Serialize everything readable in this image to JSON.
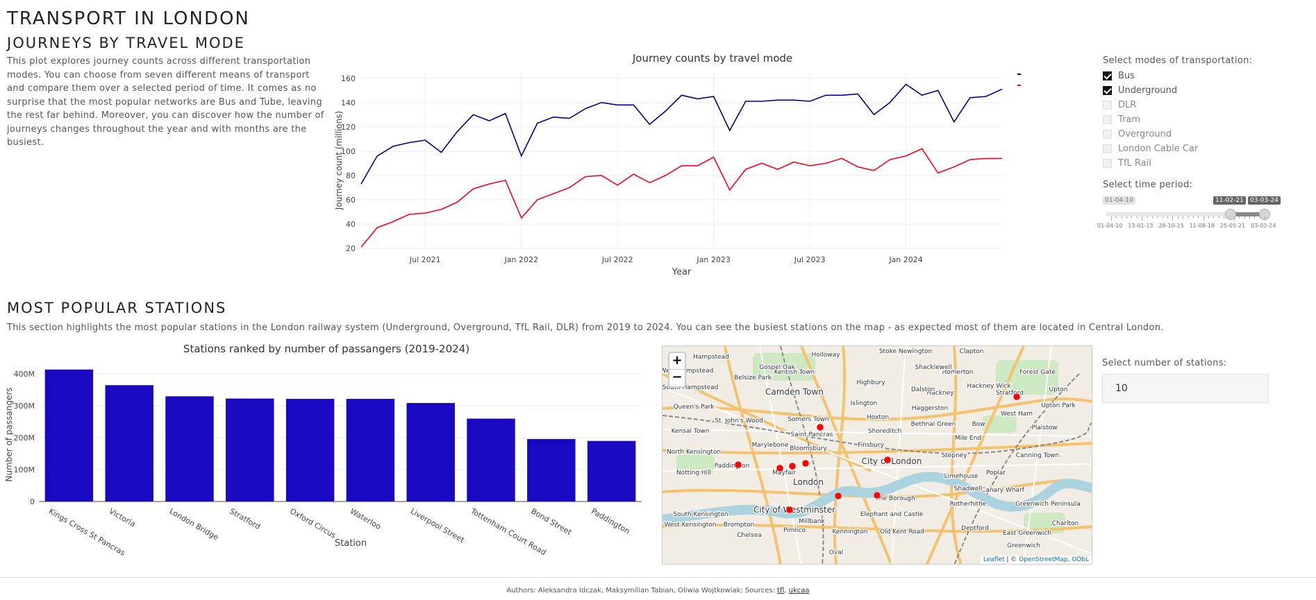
{
  "page": {
    "title": "TRANSPORT IN LONDON"
  },
  "journeys": {
    "heading": "JOURNEYS BY TRAVEL MODE",
    "description": "This plot explores journey counts across different transportation modes. You can choose from seven different means of transport and compare them over a selected period of time. It comes as no surprise that the most popular networks are Bus and Tube, leaving the rest far behind. Moreover, you can discover how the number of journeys changes throughout the year and with months are the busiest.",
    "modes_label": "Select modes of transportation:",
    "modes": [
      {
        "label": "Bus",
        "checked": true
      },
      {
        "label": "Underground",
        "checked": true
      },
      {
        "label": "DLR",
        "checked": false
      },
      {
        "label": "Tram",
        "checked": false
      },
      {
        "label": "Overground",
        "checked": false
      },
      {
        "label": "London Cable Car",
        "checked": false
      },
      {
        "label": "TfL Rail",
        "checked": false
      }
    ],
    "period_label": "Select time period:",
    "slider": {
      "min_label": "01-04-10",
      "start_value": "11-02-21",
      "end_value": "03-03-24",
      "ticks": [
        "01-04-10",
        "13-01-13",
        "28-10-15",
        "11-08-18",
        "25-05-21",
        "03-03-24"
      ]
    }
  },
  "chart_data": [
    {
      "type": "line",
      "title": "Journey counts by travel mode",
      "xlabel": "Year",
      "ylabel": "Journey count (millions)",
      "ylim": [
        20,
        165
      ],
      "yticks": [
        20,
        40,
        60,
        80,
        100,
        120,
        140,
        160
      ],
      "xticks": [
        "Jul 2021",
        "Jan 2022",
        "Jul 2022",
        "Jan 2023",
        "Jul 2023",
        "Jan 2024"
      ],
      "legend_position": "top-right",
      "series": [
        {
          "name": "Bus",
          "color": "#00008b",
          "values": [
            73,
            96,
            104,
            107,
            109,
            99,
            116,
            130,
            125,
            131,
            96,
            123,
            128,
            127,
            135,
            140,
            138,
            138,
            122,
            133,
            146,
            143,
            145,
            117,
            141,
            141,
            142,
            142,
            141,
            146,
            146,
            147,
            130,
            140,
            155,
            146,
            150,
            124,
            144,
            145,
            151
          ]
        },
        {
          "name": "Underground",
          "color": "#ff0019",
          "values": [
            21,
            37,
            42,
            48,
            49,
            52,
            58,
            69,
            73,
            76,
            45,
            60,
            65,
            70,
            79,
            80,
            72,
            81,
            74,
            80,
            88,
            88,
            95,
            68,
            85,
            90,
            85,
            91,
            88,
            90,
            94,
            87,
            84,
            93,
            96,
            102,
            82,
            87,
            93,
            94,
            94
          ]
        }
      ]
    },
    {
      "type": "bar",
      "title": "Stations ranked by number of passangers (2019-2024)",
      "xlabel": "Station",
      "ylabel": "Number of passangers",
      "ylim": [
        0,
        420
      ],
      "yticks": [
        "0",
        "100M",
        "200M",
        "300M",
        "400M"
      ],
      "bar_color": "#1a09c2",
      "categories": [
        "Kings Cross St Pancras",
        "Victoria",
        "London Bridge",
        "Stratford",
        "Oxford Circus",
        "Waterloo",
        "Liverpool Street",
        "Tottenham Court Road",
        "Bond Street",
        "Paddington"
      ],
      "values": [
        414,
        365,
        330,
        323,
        322,
        322,
        309,
        260,
        196,
        190
      ]
    }
  ],
  "stations": {
    "heading": "MOST POPULAR STATIONS",
    "description": "This section highlights the most popular stations in the London railway system (Underground, Overground, TfL Rail, DLR) from 2019 to 2024. You can see the busiest stations on the map - as expected most of them are located in Central London.",
    "count_label": "Select number of stations:",
    "count_value": "10"
  },
  "map": {
    "zoom_in": "+",
    "zoom_out": "−",
    "attribution_leaflet": "Leaflet",
    "attribution_sep": " | © ",
    "attribution_osm": "OpenStreetMap",
    "attribution_odbl": "ODbL",
    "labels": [
      "Hampstead",
      "Camden Town",
      "Kentish Town",
      "Holloway",
      "Islington",
      "Stoke Newington",
      "Hackney",
      "Homerton",
      "Hackney Wick",
      "Stratford",
      "Forest Gate",
      "West Ham",
      "Upton Park",
      "Plaistow",
      "Bow",
      "Mile End",
      "Stepney",
      "Shoreditch",
      "Hoxton",
      "Finsbury",
      "Bethnal Green",
      "City of London",
      "Limehouse",
      "Poplar",
      "Canary Wharf",
      "Canning Town",
      "Greenwich",
      "Rotherhithe",
      "The Borough",
      "Elephant and Castle",
      "Kennington",
      "Old Kent Road",
      "Deptford",
      "City of Westminster",
      "London",
      "Mayfair",
      "Marylebone",
      "Bloomsbury",
      "Saint Pancras",
      "Somers Town",
      "Paddington",
      "Kensal Town",
      "Notting Hill",
      "North Kensington",
      "South Kensington",
      "West Kensington",
      "Chelsea",
      "Brompton",
      "Pimlico",
      "Millbank",
      "Oval",
      "Queen's Park",
      "St. John's Wood",
      "West Hampstead",
      "South Hampstead",
      "Belsize Park",
      "Gospel Oak",
      "Highbury",
      "Dalston",
      "Haggerston",
      "Clapton",
      "Shacklewell",
      "Shadwell",
      "East Greenwich",
      "Charlton",
      "Upton",
      "Greenwich Peninsula"
    ],
    "station_markers": [
      "Kings Cross St Pancras",
      "Victoria",
      "London Bridge",
      "Stratford",
      "Oxford Circus",
      "Waterloo",
      "Liverpool Street",
      "Tottenham Court Road",
      "Bond Street",
      "Paddington"
    ]
  },
  "footer": {
    "prefix": "Authors: Aleksandra Idczak, Maksymilian Tabian, Oliwia Wojtkowiak; Sources: ",
    "link1": "tfl",
    "sep": ", ",
    "link2": "ukcaa"
  }
}
